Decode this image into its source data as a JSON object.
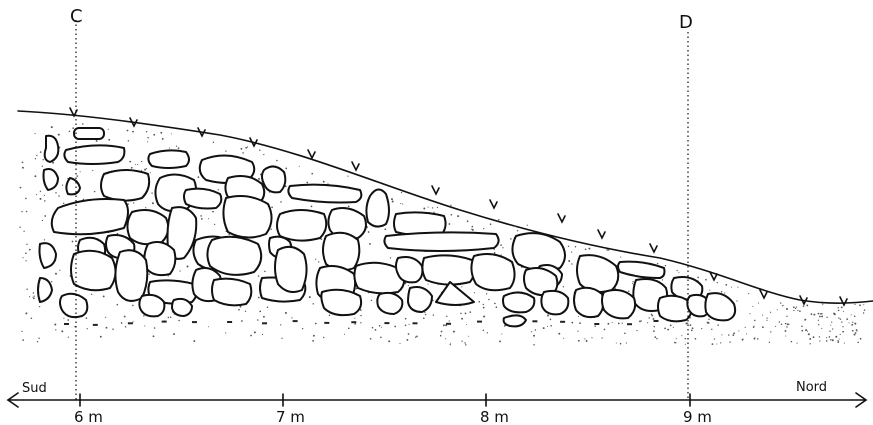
{
  "section": {
    "markers": [
      {
        "label": "C"
      },
      {
        "label": "D"
      }
    ],
    "orientation": {
      "left": "Sud",
      "right": "Nord"
    },
    "scale_ticks": [
      {
        "label": "6 m",
        "value": 6
      },
      {
        "label": "7 m",
        "value": 7
      },
      {
        "label": "8 m",
        "value": 8
      },
      {
        "label": "9 m",
        "value": 9
      }
    ]
  }
}
